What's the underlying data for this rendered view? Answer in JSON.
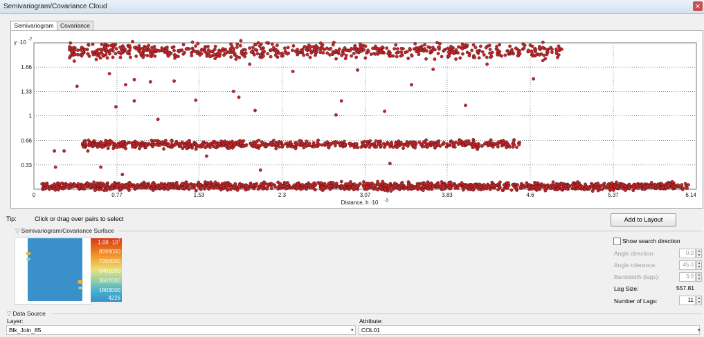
{
  "window": {
    "title": "Semivariogram/Covariance Cloud",
    "close_glyph": "✕"
  },
  "tabs": [
    {
      "label": "Semivariogram",
      "active": true
    },
    {
      "label": "Covariance",
      "active": false
    }
  ],
  "chart_data": {
    "type": "scatter",
    "ylabel": "γ ·10",
    "ylabel_exponent": "-7",
    "xlabel": "Distance, h ·10",
    "xlabel_exponent": "-3",
    "x_ticks": [
      "0",
      "0.77",
      "1.53",
      "2.3",
      "3.07",
      "3.83",
      "4.6",
      "5.37",
      "6.14"
    ],
    "y_ticks": [
      "0.33",
      "0.66",
      "1",
      "1.33",
      "1.66"
    ],
    "xlim": [
      0,
      6.14
    ],
    "ylim": [
      0,
      1.99
    ],
    "grid": true,
    "point_color": "#c0282c",
    "point_stroke": "#3a0a0a",
    "bands": [
      {
        "y_center": 0.04,
        "y_spread": 0.05,
        "x_range": [
          0.07,
          6.07
        ],
        "count": 1500
      },
      {
        "y_center": 0.61,
        "y_spread": 0.05,
        "x_range": [
          0.45,
          4.5
        ],
        "count": 700
      },
      {
        "y_center": 1.88,
        "y_spread": 0.1,
        "x_range": [
          0.33,
          4.9
        ],
        "count": 650
      }
    ],
    "outliers": [
      [
        0.19,
        0.52
      ],
      [
        0.28,
        0.52
      ],
      [
        0.5,
        0.52
      ],
      [
        0.62,
        0.3
      ],
      [
        0.82,
        0.2
      ],
      [
        1.6,
        0.45
      ],
      [
        0.4,
        1.4
      ],
      [
        0.7,
        1.57
      ],
      [
        0.85,
        1.42
      ],
      [
        0.93,
        1.49
      ],
      [
        1.08,
        1.46
      ],
      [
        1.3,
        1.47
      ],
      [
        0.76,
        1.12
      ],
      [
        0.93,
        1.2
      ],
      [
        1.5,
        1.21
      ],
      [
        1.85,
        1.33
      ],
      [
        1.9,
        1.25
      ],
      [
        2.05,
        1.07
      ],
      [
        2.8,
        1.01
      ],
      [
        2.85,
        1.2
      ],
      [
        3.25,
        1.06
      ],
      [
        3.5,
        1.42
      ],
      [
        4.0,
        1.14
      ],
      [
        4.63,
        1.5
      ],
      [
        2.0,
        1.7
      ],
      [
        2.4,
        1.6
      ],
      [
        3.0,
        1.62
      ],
      [
        3.7,
        1.63
      ],
      [
        4.2,
        1.7
      ],
      [
        0.2,
        0.3
      ],
      [
        2.1,
        0.26
      ],
      [
        3.3,
        0.35
      ],
      [
        1.15,
        0.95
      ]
    ]
  },
  "tip": {
    "label": "Tip:",
    "text": "Click or drag over pairs to select"
  },
  "add_to_layout": "Add to Layout",
  "surface": {
    "header": "Semivariogram/Covariance Surface",
    "legend_labels": [
      "1.08 ·10",
      "8999000",
      "7200000",
      "5401000",
      "3602000",
      "1803000",
      "4226"
    ],
    "legend_top_exponent": "7"
  },
  "search": {
    "show_label": "Show search direction",
    "angle_direction": {
      "label": "Angle direction:",
      "value": "0.0"
    },
    "angle_tolerance": {
      "label": "Angle tolerance:",
      "value": "45.0"
    },
    "bandwidth": {
      "label": "Bandwidth (lags):",
      "value": "3.0"
    },
    "lag_size": {
      "label": "Lag Size:",
      "value": "557.81"
    },
    "num_lags": {
      "label": "Number of Lags:",
      "value": "11"
    }
  },
  "data_source": {
    "header": "Data Source",
    "layer_label": "Layer:",
    "layer_value": "Blk_Join_85",
    "attribute_label": "Attribute:",
    "attribute_value": "COL01"
  }
}
